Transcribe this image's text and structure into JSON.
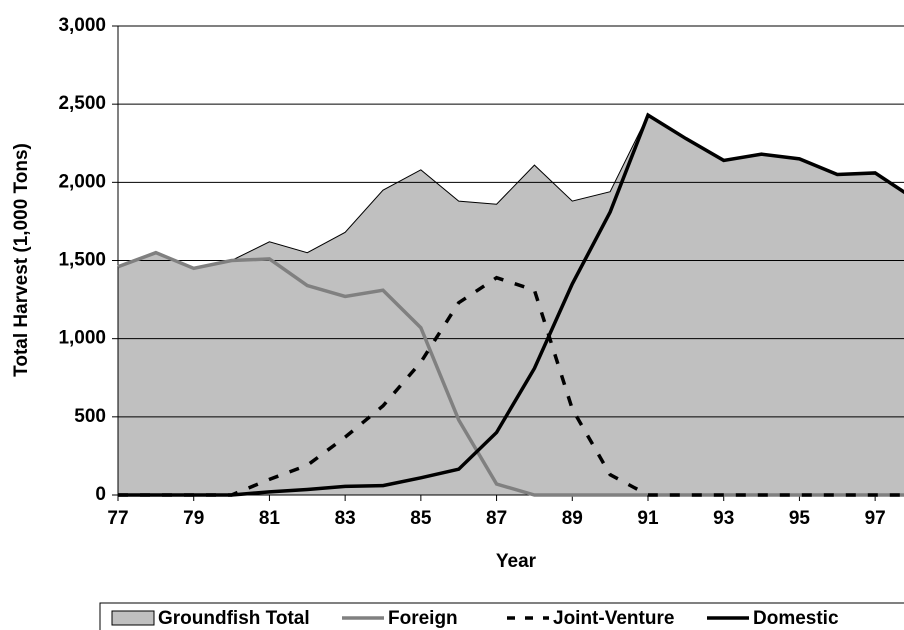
{
  "chart_data": {
    "type": "line",
    "y_label": "Total Harvest (1,000 Tons)",
    "x_label": "Year",
    "x": [
      77,
      78,
      79,
      80,
      81,
      82,
      83,
      84,
      85,
      86,
      87,
      88,
      89,
      90,
      91,
      92,
      93,
      94,
      95,
      96,
      97,
      98
    ],
    "series": [
      {
        "name": "Groundfish Total",
        "color": "#c0c0c0",
        "style": "area",
        "values": [
          1460,
          1550,
          1450,
          1500,
          1620,
          1550,
          1680,
          1950,
          2080,
          1880,
          1860,
          2110,
          1880,
          1940,
          2430,
          2280,
          2140,
          2180,
          2150,
          2050,
          2060,
          1900
        ]
      },
      {
        "name": "Foreign",
        "color": "#808080",
        "style": "solid",
        "values": [
          1460,
          1550,
          1450,
          1500,
          1510,
          1340,
          1270,
          1310,
          1070,
          480,
          70,
          0,
          0,
          0,
          0,
          0,
          0,
          0,
          0,
          0,
          0,
          0
        ]
      },
      {
        "name": "Joint-Venture",
        "color": "#000000",
        "style": "dashed",
        "values": [
          0,
          0,
          0,
          0,
          100,
          190,
          370,
          570,
          850,
          1230,
          1390,
          1310,
          550,
          130,
          0,
          0,
          0,
          0,
          0,
          0,
          0,
          0
        ]
      },
      {
        "name": "Domestic",
        "color": "#000000",
        "style": "solid",
        "values": [
          0,
          0,
          0,
          0,
          20,
          35,
          55,
          60,
          110,
          165,
          400,
          810,
          1350,
          1810,
          2430,
          2280,
          2140,
          2180,
          2150,
          2050,
          2060,
          1900
        ]
      }
    ],
    "xlim": [
      77,
      98
    ],
    "xticks": [
      77,
      79,
      81,
      83,
      85,
      87,
      89,
      91,
      93,
      95,
      97
    ],
    "ylim": [
      0,
      3000
    ],
    "yticks": [
      0,
      500,
      {
        "value": 1000,
        "label": "1,000"
      },
      {
        "value": 1500,
        "label": "1,500"
      },
      {
        "value": 2000,
        "label": "2,000"
      },
      {
        "value": 2500,
        "label": "2,500"
      },
      {
        "value": 3000,
        "label": "3,000"
      }
    ],
    "grid": true,
    "legend": "bottom"
  }
}
